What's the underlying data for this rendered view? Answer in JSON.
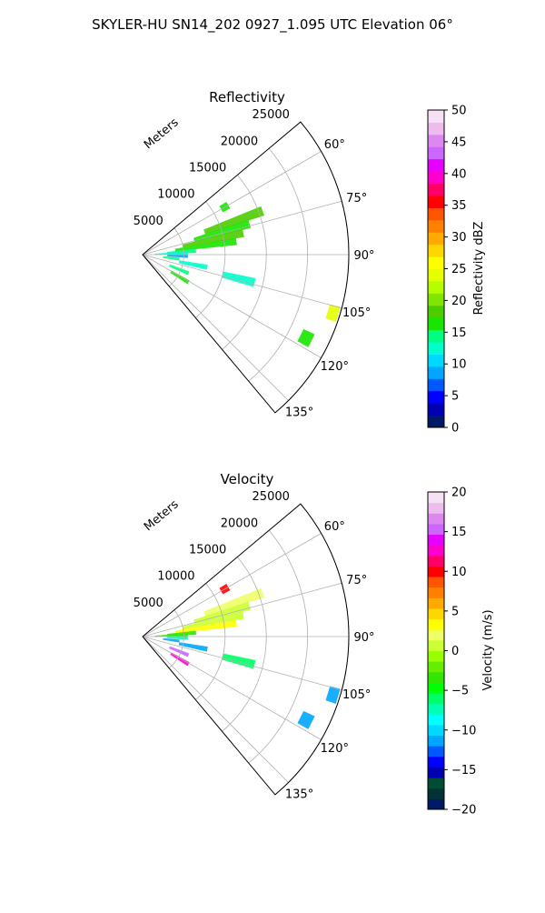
{
  "figure": {
    "title": "SKYLER-HU  SN14_202  0927_1.095 UTC Elevation 06°"
  },
  "chart_data": [
    {
      "type": "polar-sector",
      "title": "Reflectivity",
      "radial_label": "Meters",
      "radial_ticks": [
        "5000",
        "10000",
        "15000",
        "20000",
        "25000"
      ],
      "radial_tick_values": [
        5000,
        10000,
        15000,
        20000,
        25000
      ],
      "rlim": [
        0,
        25000
      ],
      "angle_ticks": [
        "60°",
        "75°",
        "90°",
        "105°",
        "120°",
        "135°"
      ],
      "angle_tick_values": [
        60,
        75,
        90,
        105,
        120,
        135
      ],
      "theta_range": [
        50,
        140
      ],
      "grid": true,
      "colorbar": {
        "label": "Reflectivity dBZ",
        "ticks": [
          "0",
          "5",
          "10",
          "15",
          "20",
          "25",
          "30",
          "35",
          "40",
          "45",
          "50"
        ],
        "range": [
          0,
          50
        ],
        "colors": [
          "#001a66",
          "#0000b3",
          "#0000ff",
          "#0059ff",
          "#00a6ff",
          "#00d9ff",
          "#00ffcc",
          "#00ff80",
          "#19e600",
          "#4dcc00",
          "#80e600",
          "#b3ff00",
          "#e6ff00",
          "#ffff00",
          "#ffd700",
          "#ffaa00",
          "#ff7f00",
          "#ff5500",
          "#ff0000",
          "#ff0066",
          "#ff00cc",
          "#e600ff",
          "#cc66ff",
          "#dd88ee",
          "#eebbee",
          "#f6e0f6"
        ]
      },
      "echo_regions": [
        {
          "az": 70,
          "r0": 8000,
          "r1": 15500,
          "value": 19
        },
        {
          "az": 74,
          "r0": 6500,
          "r1": 13500,
          "value": 17
        },
        {
          "az": 78,
          "r0": 5000,
          "r1": 12500,
          "value": 18
        },
        {
          "az": 82,
          "r0": 4000,
          "r1": 11500,
          "value": 16
        },
        {
          "az": 86,
          "r0": 3000,
          "r1": 6500,
          "value": 15
        },
        {
          "az": 88,
          "r0": 1500,
          "r1": 5500,
          "value": 12
        },
        {
          "az": 92,
          "r0": 3000,
          "r1": 5500,
          "value": 9
        },
        {
          "az": 97,
          "r0": 2500,
          "r1": 4500,
          "value": 14
        },
        {
          "az": 101,
          "r0": 4500,
          "r1": 8000,
          "value": 12
        },
        {
          "az": 104,
          "r0": 10000,
          "r1": 14000,
          "value": 13
        },
        {
          "az": 112,
          "r0": 3500,
          "r1": 6000,
          "value": 14
        },
        {
          "az": 121,
          "r0": 4000,
          "r1": 6500,
          "value": 16
        },
        {
          "az": 60,
          "r0": 11000,
          "r1": 12000,
          "value": 17
        },
        {
          "az": 107,
          "r0": 23500,
          "r1": 24800,
          "value": 24
        },
        {
          "az": 117,
          "r0": 21500,
          "r1": 23000,
          "value": 17
        }
      ]
    },
    {
      "type": "polar-sector",
      "title": "Velocity",
      "radial_label": "Meters",
      "radial_ticks": [
        "5000",
        "10000",
        "15000",
        "20000",
        "25000"
      ],
      "radial_tick_values": [
        5000,
        10000,
        15000,
        20000,
        25000
      ],
      "rlim": [
        0,
        25000
      ],
      "angle_ticks": [
        "60°",
        "75°",
        "90°",
        "105°",
        "120°",
        "135°"
      ],
      "angle_tick_values": [
        60,
        75,
        90,
        105,
        120,
        135
      ],
      "theta_range": [
        50,
        140
      ],
      "grid": true,
      "colorbar": {
        "label": "Velocity (m/s)",
        "ticks": [
          "−20",
          "−15",
          "−10",
          "−5",
          "0",
          "5",
          "10",
          "15",
          "20"
        ],
        "range": [
          -20,
          20
        ],
        "colors": [
          "#001a66",
          "#003333",
          "#004d33",
          "#0000b3",
          "#0000ff",
          "#0059ff",
          "#00a6ff",
          "#00d9ff",
          "#00ffff",
          "#00ffb3",
          "#00ff66",
          "#00ff00",
          "#33e600",
          "#66ee00",
          "#99ff00",
          "#ccff33",
          "#eeff66",
          "#ffff00",
          "#ffd700",
          "#ffaa00",
          "#ff7f00",
          "#ff5500",
          "#ff0000",
          "#ff0066",
          "#ff00cc",
          "#e600ff",
          "#cc66ff",
          "#dd88ee",
          "#eebbee",
          "#f6e0f6"
        ]
      },
      "echo_regions": [
        {
          "az": 70,
          "r0": 8000,
          "r1": 15500,
          "value": 2
        },
        {
          "az": 74,
          "r0": 6500,
          "r1": 13500,
          "value": 1
        },
        {
          "az": 78,
          "r0": 5000,
          "r1": 12500,
          "value": 0
        },
        {
          "az": 82,
          "r0": 4000,
          "r1": 11500,
          "value": 3
        },
        {
          "az": 86,
          "r0": 3000,
          "r1": 6500,
          "value": -4
        },
        {
          "az": 88,
          "r0": 1500,
          "r1": 5500,
          "value": -3
        },
        {
          "az": 92,
          "r0": 3000,
          "r1": 5500,
          "value": -7
        },
        {
          "az": 97,
          "r0": 2500,
          "r1": 4500,
          "value": -12
        },
        {
          "az": 101,
          "r0": 4500,
          "r1": 8000,
          "value": -11
        },
        {
          "az": 104,
          "r0": 10000,
          "r1": 14000,
          "value": -6
        },
        {
          "az": 112,
          "r0": 3500,
          "r1": 6000,
          "value": 15
        },
        {
          "az": 121,
          "r0": 4000,
          "r1": 6500,
          "value": 12
        },
        {
          "az": 60,
          "r0": 11000,
          "r1": 12000,
          "value": 10
        },
        {
          "az": 107,
          "r0": 23500,
          "r1": 24800,
          "value": -12
        },
        {
          "az": 117,
          "r0": 21500,
          "r1": 23000,
          "value": -11
        }
      ]
    }
  ]
}
